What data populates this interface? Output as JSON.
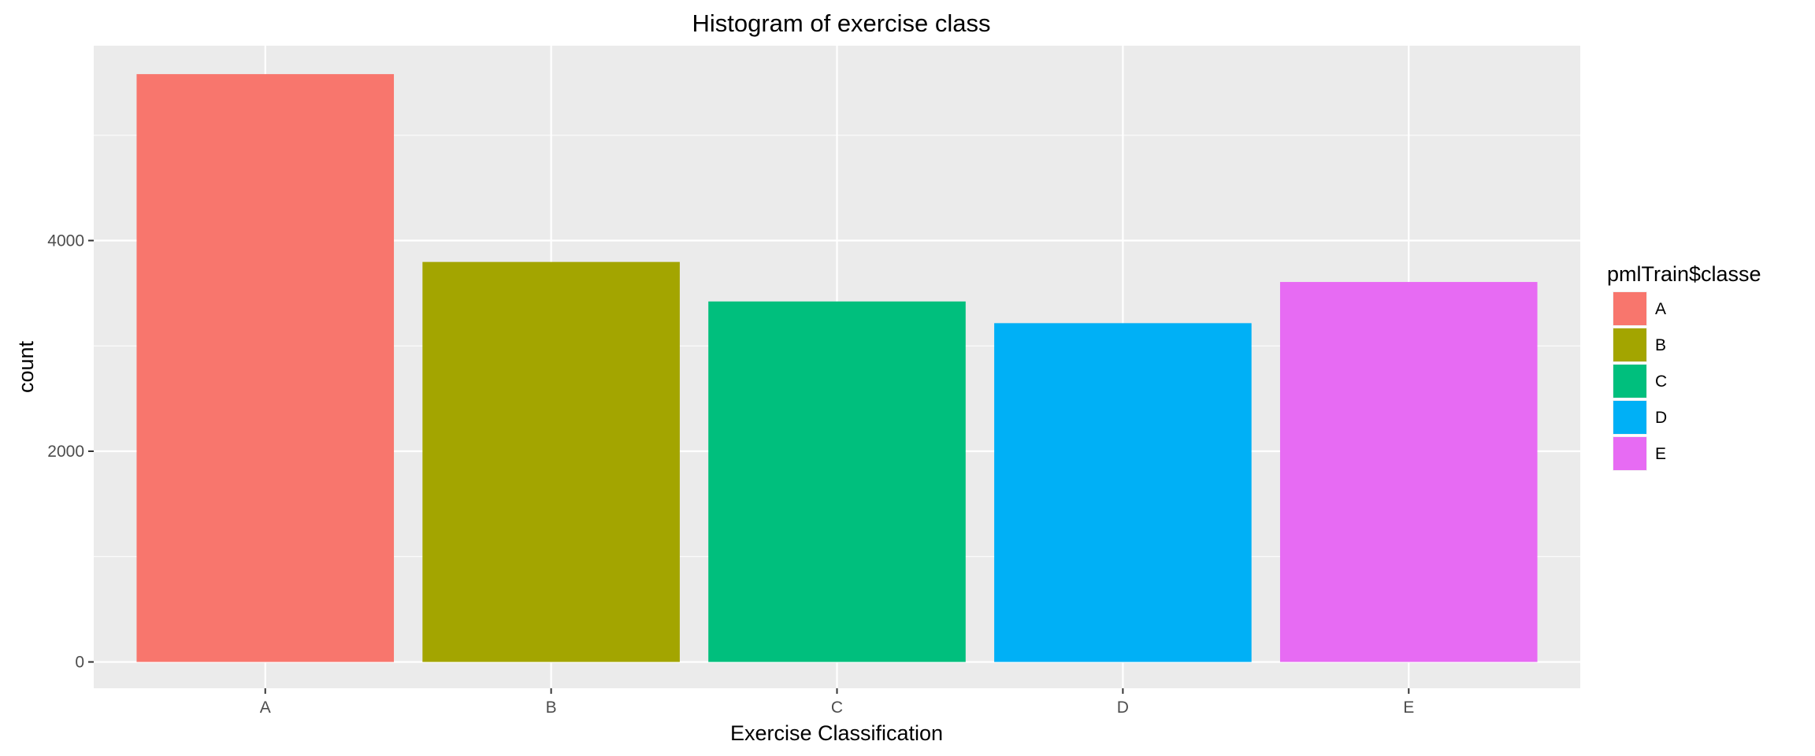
{
  "chart_data": {
    "type": "bar",
    "title": "Histogram of exercise class",
    "xlabel": "Exercise Classification",
    "ylabel": "count",
    "categories": [
      "A",
      "B",
      "C",
      "D",
      "E"
    ],
    "values": [
      5580,
      3797,
      3422,
      3216,
      3607
    ],
    "colors": [
      "#F8766D",
      "#A3A500",
      "#00BF7D",
      "#00B0F6",
      "#E76BF3"
    ],
    "ylim": [
      -250,
      5850
    ],
    "yticks": [
      0,
      2000,
      4000
    ],
    "ytick_labels": [
      "0",
      "2000",
      "4000"
    ],
    "grid": true,
    "legend": {
      "title": "pmlTrain$classe",
      "placement": "right",
      "items": [
        "A",
        "B",
        "C",
        "D",
        "E"
      ]
    },
    "panel_background": "#EBEBEB",
    "grid_color": "#FFFFFF"
  }
}
